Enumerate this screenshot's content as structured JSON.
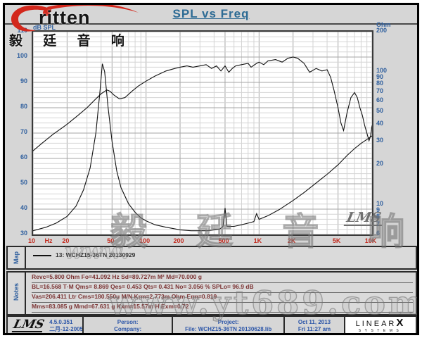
{
  "header": {
    "title": "SPL vs Freq"
  },
  "logo": {
    "brand": "ritten",
    "brand_cn": "毅 廷 音 响"
  },
  "chart_data": {
    "type": "line",
    "title": "SPL vs Freq",
    "x_axis": {
      "scale": "log",
      "min": 10,
      "max": 10000,
      "unit": "Hz",
      "ticks": [
        {
          "f": 10,
          "l": "10"
        },
        {
          "f": 20,
          "l": "20"
        },
        {
          "f": 50,
          "l": "50"
        },
        {
          "f": 100,
          "l": "100"
        },
        {
          "f": 200,
          "l": "200"
        },
        {
          "f": 500,
          "l": "500"
        },
        {
          "f": 1000,
          "l": "1K"
        },
        {
          "f": 2000,
          "l": "2K"
        },
        {
          "f": 5000,
          "l": "5K"
        },
        {
          "f": 10000,
          "l": "10K"
        }
      ]
    },
    "y_left": {
      "label": "dB SPL",
      "scale": "linear",
      "min": 30,
      "max": 110,
      "ticks": [
        110,
        100,
        90,
        80,
        70,
        60,
        50,
        40,
        30
      ]
    },
    "y_right": {
      "label": "Ohm",
      "scale": "log",
      "min": 6,
      "max": 200,
      "ticks": [
        200,
        100,
        90,
        80,
        70,
        60,
        50,
        40,
        30,
        20,
        10,
        9,
        8,
        7,
        6
      ]
    },
    "grid": true,
    "legend": "13: WCHZ15-36TN  20130929",
    "series": [
      {
        "name": "SPL",
        "axis": "left",
        "color": "#111111",
        "points": [
          [
            10,
            63
          ],
          [
            12,
            66
          ],
          [
            15,
            69.5
          ],
          [
            18,
            72
          ],
          [
            20,
            73.5
          ],
          [
            25,
            77
          ],
          [
            30,
            80
          ],
          [
            35,
            83
          ],
          [
            40,
            85.5
          ],
          [
            45,
            87
          ],
          [
            48,
            86.5
          ],
          [
            52,
            85
          ],
          [
            58,
            83.5
          ],
          [
            65,
            84
          ],
          [
            75,
            86.5
          ],
          [
            85,
            88.5
          ],
          [
            100,
            90.5
          ],
          [
            120,
            92.5
          ],
          [
            150,
            94.5
          ],
          [
            180,
            95.5
          ],
          [
            200,
            96
          ],
          [
            230,
            96.5
          ],
          [
            260,
            96
          ],
          [
            300,
            96.5
          ],
          [
            340,
            97
          ],
          [
            380,
            95.5
          ],
          [
            420,
            96.5
          ],
          [
            460,
            94.5
          ],
          [
            500,
            96.5
          ],
          [
            540,
            94
          ],
          [
            580,
            95.5
          ],
          [
            620,
            96.5
          ],
          [
            700,
            97
          ],
          [
            800,
            97.5
          ],
          [
            850,
            96
          ],
          [
            950,
            97.5
          ],
          [
            1000,
            98
          ],
          [
            1100,
            97
          ],
          [
            1200,
            98.5
          ],
          [
            1400,
            99
          ],
          [
            1600,
            98
          ],
          [
            1800,
            99.5
          ],
          [
            2000,
            100
          ],
          [
            2200,
            99.5
          ],
          [
            2500,
            97.5
          ],
          [
            2800,
            94
          ],
          [
            3200,
            95.5
          ],
          [
            3600,
            94.5
          ],
          [
            4000,
            95
          ],
          [
            4300,
            92
          ],
          [
            4600,
            87
          ],
          [
            5000,
            80
          ],
          [
            5300,
            74
          ],
          [
            5600,
            71
          ],
          [
            6000,
            78
          ],
          [
            6500,
            84
          ],
          [
            7000,
            86
          ],
          [
            7400,
            84
          ],
          [
            7800,
            80
          ],
          [
            8200,
            77
          ],
          [
            8600,
            73
          ],
          [
            9000,
            70
          ],
          [
            9400,
            67
          ],
          [
            9700,
            69
          ],
          [
            10000,
            73
          ]
        ]
      },
      {
        "name": "Impedance",
        "axis": "right",
        "color": "#111111",
        "points": [
          [
            10,
            6.4
          ],
          [
            13,
            6.8
          ],
          [
            16,
            7.3
          ],
          [
            20,
            8.2
          ],
          [
            24,
            9.8
          ],
          [
            28,
            13
          ],
          [
            32,
            19
          ],
          [
            36,
            35
          ],
          [
            39,
            70
          ],
          [
            41,
            115
          ],
          [
            43,
            100
          ],
          [
            46,
            55
          ],
          [
            50,
            30
          ],
          [
            55,
            18
          ],
          [
            60,
            13.5
          ],
          [
            70,
            10.2
          ],
          [
            80,
            8.8
          ],
          [
            90,
            8.0
          ],
          [
            100,
            7.6
          ],
          [
            120,
            7.1
          ],
          [
            150,
            6.8
          ],
          [
            200,
            6.5
          ],
          [
            250,
            6.4
          ],
          [
            300,
            6.4
          ],
          [
            350,
            6.4
          ],
          [
            400,
            6.5
          ],
          [
            450,
            6.6
          ],
          [
            480,
            6.9
          ],
          [
            500,
            9.5
          ],
          [
            520,
            6.9
          ],
          [
            600,
            6.9
          ],
          [
            700,
            7.1
          ],
          [
            800,
            7.3
          ],
          [
            900,
            7.5
          ],
          [
            950,
            8.6
          ],
          [
            1000,
            7.8
          ],
          [
            1200,
            8.3
          ],
          [
            1500,
            9.2
          ],
          [
            2000,
            10.8
          ],
          [
            2500,
            12.4
          ],
          [
            3000,
            14
          ],
          [
            4000,
            17
          ],
          [
            5000,
            20
          ],
          [
            6000,
            23.5
          ],
          [
            7000,
            26.5
          ],
          [
            8000,
            29
          ],
          [
            9000,
            31
          ],
          [
            10000,
            33
          ]
        ]
      }
    ],
    "lms_mark": "LMS"
  },
  "map_panel": {
    "label": "Map",
    "legend": "13: WCHZ15-36TN  20130929"
  },
  "notes_panel": {
    "label": "Notes",
    "lines": [
      "Revc=5.800 Ohm  Fo=41.092 Hz  Sd=89.727m M²  Md=70.000 g",
      "BL=16.568 T·M  Qms= 8.869  Qes= 0.453  Qts= 0.431  No= 3.056 %  SPLo= 96.9 dB",
      "Vas=206.411 Ltr  Cms=180.550u M/N  Krm=2.773m Ohm  Erm=0.819",
      "Mms=83.085 g  Mmd=67.631 g  Kxm=15.57m H  Exm=0.72"
    ]
  },
  "footer": {
    "lms": "LMS",
    "version": "4.5.0.351",
    "date_cn": "二月-12-2005",
    "person_label": "Person:",
    "company_label": "Company:",
    "project_label": "Project:",
    "file": "File: WCHZ15-36TN  20130628.lib",
    "date": "Oct 11, 2013",
    "time": "Fri 11:27 am",
    "brand": {
      "name": "LINEAR",
      "x": "X",
      "sub": "SYSTEMS"
    }
  },
  "watermarks": {
    "plot_cn": "毅 廷 音 响",
    "plot_url": "www.",
    "bottom_url": "www.yt689.com"
  },
  "colors": {
    "title": "#2d6b94",
    "axis_blue": "#2f5f9e",
    "axis_red": "#c22a1e",
    "notes_text": "#7c3434",
    "curve": "#111111",
    "logo_red": "#d3281c",
    "panel_bg": "#d6d6d6"
  }
}
